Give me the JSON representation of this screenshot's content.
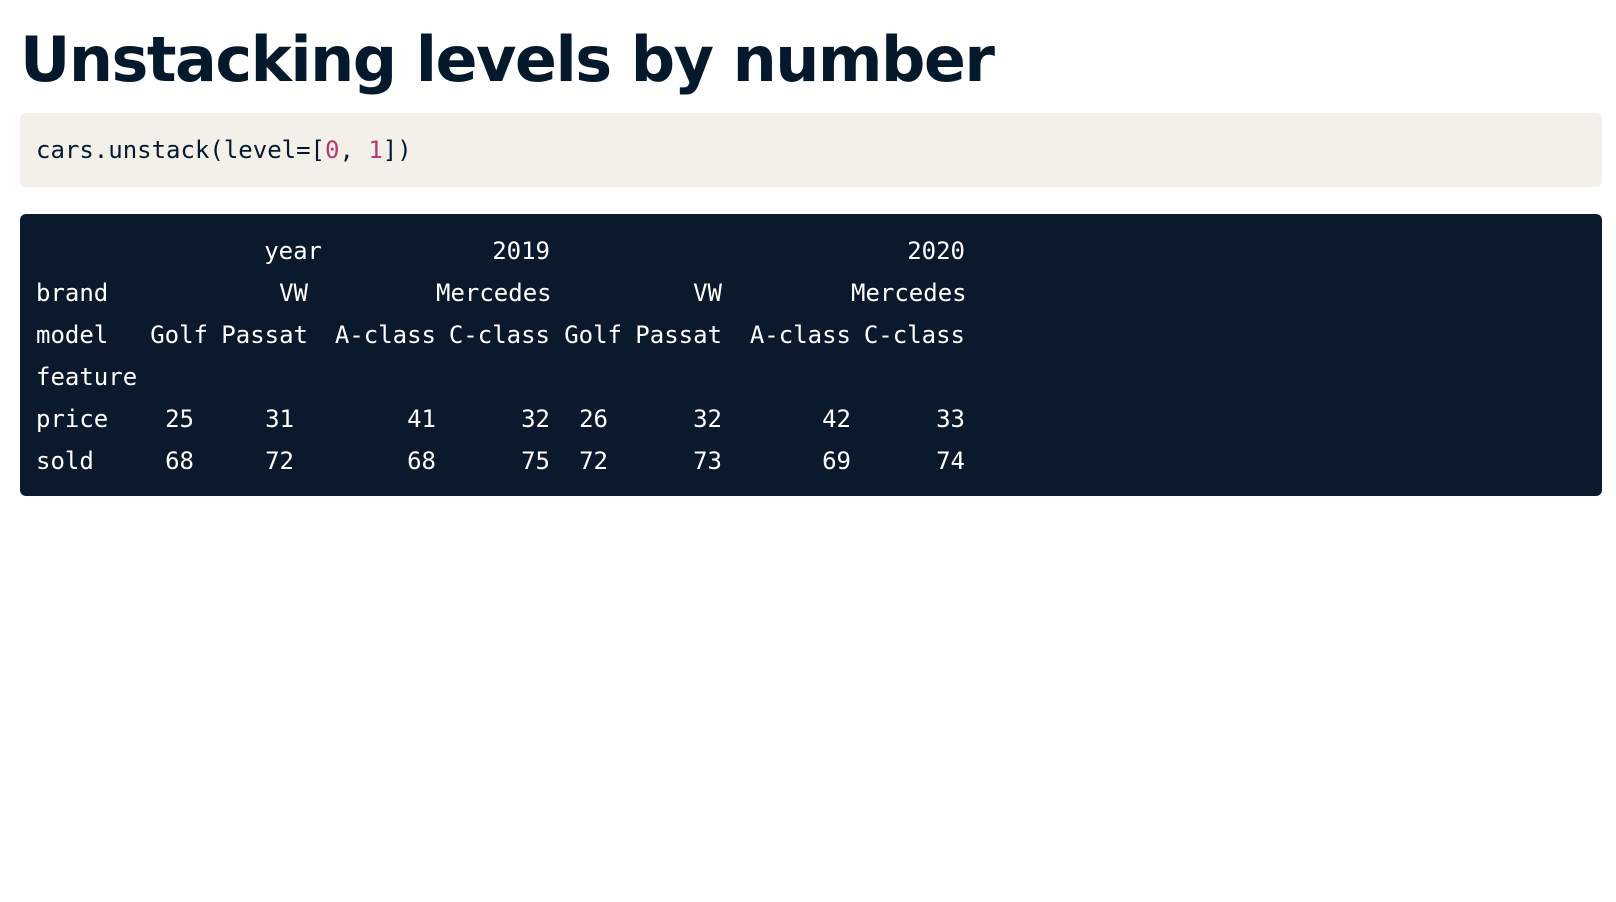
{
  "title": "Unstacking levels by number",
  "code": {
    "prefix": "cars.unstack(level=[",
    "arg1": "0",
    "sep": ", ",
    "arg2": "1",
    "suffix": "])"
  },
  "output": {
    "year_label": "year",
    "years": [
      "2019",
      "2020"
    ],
    "brand_label": "brand",
    "brands": [
      "VW",
      "Mercedes",
      "VW",
      "Mercedes"
    ],
    "model_label": "model",
    "models": [
      "Golf",
      "Passat",
      "A-class",
      "C-class",
      "Golf",
      "Passat",
      "A-class",
      "C-class"
    ],
    "index_name": "feature",
    "rows": [
      {
        "label": "price",
        "values": [
          "25",
          "31",
          "41",
          "32",
          "26",
          "32",
          "42",
          "33"
        ]
      },
      {
        "label": "sold",
        "values": [
          "68",
          "72",
          "68",
          "75",
          "72",
          "73",
          "69",
          "74"
        ]
      }
    ]
  }
}
